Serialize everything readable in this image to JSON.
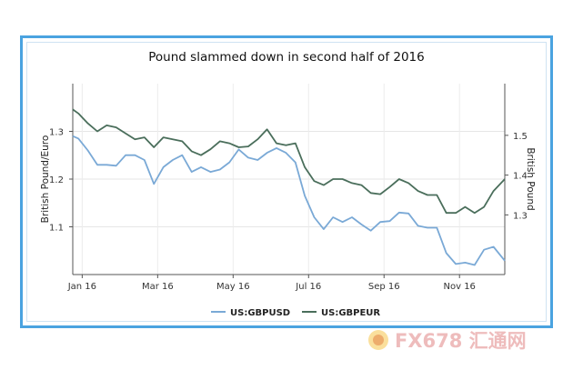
{
  "chart_data": {
    "type": "line",
    "title": "Pound slammed down in second half of 2016",
    "xlabel": "",
    "ylabel_left": "British Pound/Euro",
    "ylabel_right": "British Pound",
    "x_tick_labels": [
      "Jan 16",
      "Mar 16",
      "May 16",
      "Jul 16",
      "Sep 16",
      "Nov 16"
    ],
    "x_ticks": [
      0,
      2,
      4,
      6,
      8,
      10
    ],
    "xlim": [
      -0.25,
      11.2
    ],
    "left_axis": {
      "ylim": [
        1.0,
        1.4
      ],
      "ticks": [
        1.1,
        1.2,
        1.3
      ],
      "tick_labels": [
        "1.1",
        "1.2",
        "1.3"
      ]
    },
    "right_axis": {
      "ylim": [
        1.15,
        1.63
      ],
      "ticks": [
        1.3,
        1.4,
        1.5
      ],
      "tick_labels": [
        "1.3",
        "1.4",
        "1.5"
      ]
    },
    "grid": true,
    "legend": "bottom",
    "series": [
      {
        "name": "US:GBPUSD",
        "axis": "left",
        "color": "#7aa9d6",
        "x": [
          -0.25,
          -0.1,
          0.15,
          0.4,
          0.65,
          0.9,
          1.15,
          1.4,
          1.65,
          1.9,
          2.15,
          2.4,
          2.65,
          2.9,
          3.15,
          3.4,
          3.65,
          3.9,
          4.15,
          4.4,
          4.65,
          4.9,
          5.15,
          5.4,
          5.65,
          5.9,
          6.15,
          6.4,
          6.65,
          6.9,
          7.15,
          7.4,
          7.65,
          7.9,
          8.15,
          8.4,
          8.65,
          8.9,
          9.15,
          9.4,
          9.65,
          9.9,
          10.15,
          10.4,
          10.65,
          10.9,
          11.2
        ],
        "y": [
          1.29,
          1.285,
          1.26,
          1.23,
          1.23,
          1.228,
          1.25,
          1.25,
          1.24,
          1.19,
          1.225,
          1.24,
          1.25,
          1.215,
          1.225,
          1.215,
          1.22,
          1.235,
          1.262,
          1.245,
          1.24,
          1.255,
          1.265,
          1.255,
          1.235,
          1.165,
          1.12,
          1.095,
          1.12,
          1.11,
          1.12,
          1.105,
          1.092,
          1.11,
          1.112,
          1.13,
          1.128,
          1.102,
          1.098,
          1.098,
          1.045,
          1.022,
          1.025,
          1.02,
          1.052,
          1.058,
          1.029
        ]
      },
      {
        "name": "US:GBPEUR",
        "axis": "right",
        "color": "#4a6e5b",
        "x": [
          -0.25,
          -0.1,
          0.15,
          0.4,
          0.65,
          0.9,
          1.15,
          1.4,
          1.65,
          1.9,
          2.15,
          2.4,
          2.65,
          2.9,
          3.15,
          3.4,
          3.65,
          3.9,
          4.15,
          4.4,
          4.65,
          4.9,
          5.15,
          5.4,
          5.65,
          5.9,
          6.15,
          6.4,
          6.65,
          6.9,
          7.15,
          7.4,
          7.65,
          7.9,
          8.15,
          8.4,
          8.65,
          8.9,
          9.15,
          9.4,
          9.65,
          9.9,
          10.15,
          10.4,
          10.65,
          10.9,
          11.2
        ],
        "y": [
          1.565,
          1.555,
          1.53,
          1.51,
          1.525,
          1.52,
          1.505,
          1.49,
          1.495,
          1.47,
          1.495,
          1.49,
          1.485,
          1.46,
          1.45,
          1.465,
          1.485,
          1.48,
          1.47,
          1.472,
          1.49,
          1.515,
          1.48,
          1.475,
          1.48,
          1.42,
          1.385,
          1.375,
          1.39,
          1.39,
          1.38,
          1.375,
          1.355,
          1.352,
          1.37,
          1.39,
          1.38,
          1.36,
          1.35,
          1.35,
          1.305,
          1.305,
          1.32,
          1.305,
          1.32,
          1.36,
          1.39
        ]
      }
    ]
  },
  "watermark": {
    "text": "FX678 汇通网",
    "logo": "fx678-logo-icon"
  }
}
